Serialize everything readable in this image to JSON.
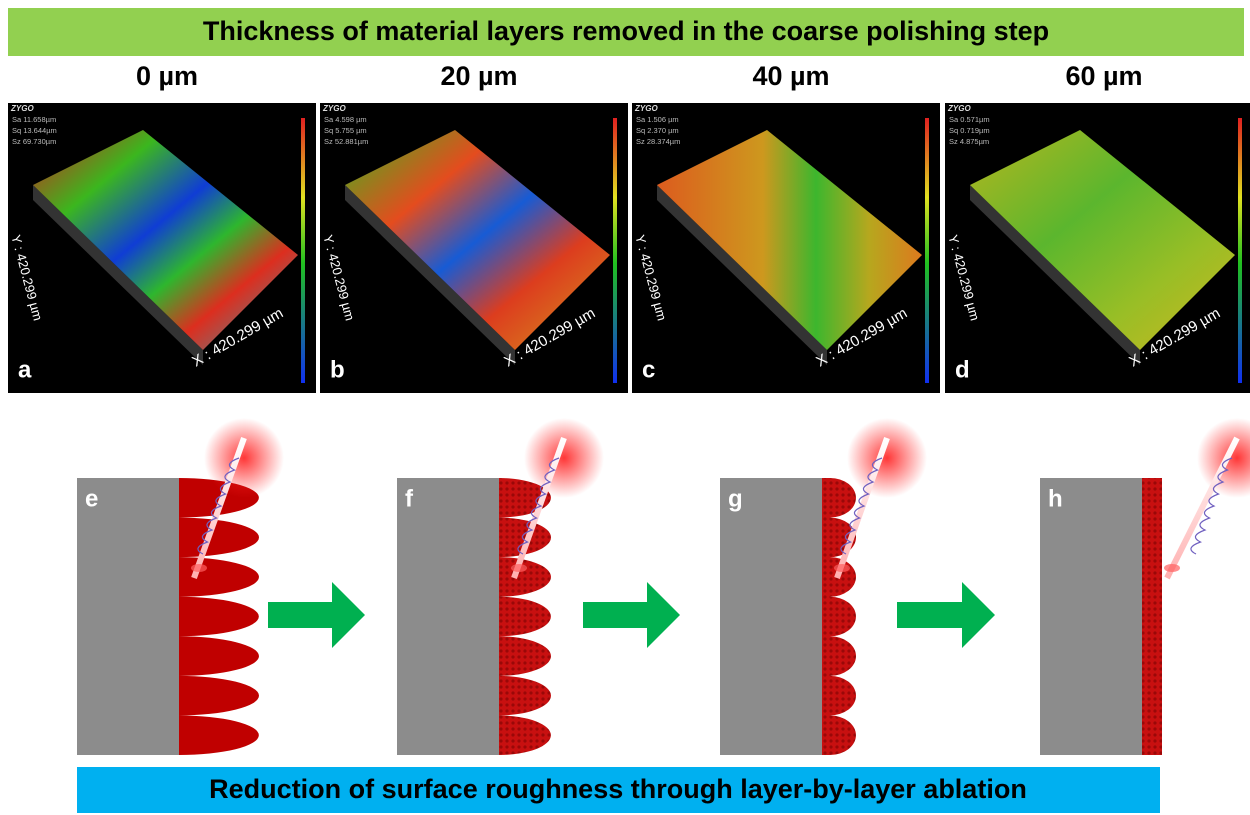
{
  "header": {
    "title": "Thickness of material layers removed in the coarse polishing step"
  },
  "panels": [
    {
      "column": "0 µm",
      "label": "a",
      "logo": "ZYGO",
      "stats": [
        "Sa 11.658µm",
        "Sq 13.644µm",
        "Sz 69.730µm"
      ],
      "x_axis": "X : 420.299 µm",
      "y_axis": "Y : 420.299 µm"
    },
    {
      "column": "20 µm",
      "label": "b",
      "logo": "ZYGO",
      "stats": [
        "Sa 4.598  µm",
        "Sq 5.755  µm",
        "Sz 52.881µm"
      ],
      "x_axis": "X : 420.299 µm",
      "y_axis": "Y : 420.299 µm"
    },
    {
      "column": "40 µm",
      "label": "c",
      "logo": "ZYGO",
      "stats": [
        "Sa 1.506  µm",
        "Sq 2.370  µm",
        "Sz 28.374µm"
      ],
      "x_axis": "X : 420.299 µm",
      "y_axis": "Y : 420.299 µm"
    },
    {
      "column": "60 µm",
      "label": "d",
      "logo": "ZYGO",
      "stats": [
        "Sa 0.571µm",
        "Sq 0.719µm",
        "Sz 4.875µm"
      ],
      "x_axis": "X : 420.299 µm",
      "y_axis": "Y : 420.299 µm"
    }
  ],
  "diagrams": [
    {
      "label": "e"
    },
    {
      "label": "f"
    },
    {
      "label": "g"
    },
    {
      "label": "h"
    }
  ],
  "footer": {
    "title": "Reduction of surface roughness through layer-by-layer ablation"
  }
}
